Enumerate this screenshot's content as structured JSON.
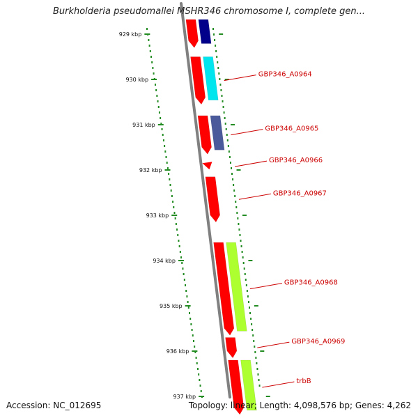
{
  "title": "Burkholderia pseudomallei MSHR346 chromosome I, complete gen...",
  "footer": {
    "accession": "Accession: NC_012695",
    "summary": "Topology: linear; Length: 4,098,576 bp; Genes: 4,262"
  },
  "ruler": {
    "ticks": [
      {
        "kbp": 929,
        "label": "929 kbp"
      },
      {
        "kbp": 930,
        "label": "930 kbp"
      },
      {
        "kbp": 931,
        "label": "931 kbp"
      },
      {
        "kbp": 932,
        "label": "932 kbp"
      },
      {
        "kbp": 933,
        "label": "933 kbp"
      },
      {
        "kbp": 934,
        "label": "934 kbp"
      },
      {
        "kbp": 935,
        "label": "935 kbp"
      },
      {
        "kbp": 936,
        "label": "936 kbp"
      },
      {
        "kbp": 937,
        "label": "937 kbp"
      }
    ]
  },
  "colors": {
    "backbone": "#808080",
    "cds": "#ff0000",
    "ruler": "#228b22",
    "label": "#cc0000"
  },
  "genes": [
    {
      "label": "",
      "start_kbp": 928.6,
      "end_kbp": 929.3,
      "color": "#ff0000",
      "feature_color": "#00008b"
    },
    {
      "label": "GBP346_A0964",
      "start_kbp": 929.5,
      "end_kbp": 930.55,
      "color": "#ff0000",
      "feature_color": "#00e5ee"
    },
    {
      "label": "GBP346_A0965",
      "start_kbp": 930.8,
      "end_kbp": 931.65,
      "color": "#ff0000",
      "feature_color": "#4a5a9a"
    },
    {
      "label": "GBP346_A0966",
      "start_kbp": 931.85,
      "end_kbp": 932.0,
      "color": "#ff0000",
      "feature_color": ""
    },
    {
      "label": "GBP346_A0967",
      "start_kbp": 932.15,
      "end_kbp": 933.15,
      "color": "#ff0000",
      "feature_color": ""
    },
    {
      "label": "GBP346_A0968",
      "start_kbp": 933.6,
      "end_kbp": 935.65,
      "color": "#ff0000",
      "feature_color": "#adff2f"
    },
    {
      "label": "GBP346_A0969",
      "start_kbp": 935.7,
      "end_kbp": 936.15,
      "color": "#ff0000",
      "feature_color": ""
    },
    {
      "label": "trbB",
      "start_kbp": 936.2,
      "end_kbp": 937.4,
      "color": "#ff0000",
      "feature_color": "#adff2f"
    }
  ]
}
